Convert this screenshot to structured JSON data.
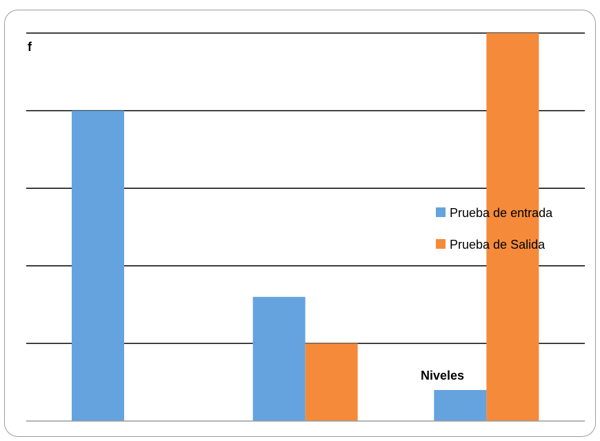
{
  "chart_data": {
    "type": "bar",
    "title": "",
    "ylabel": "f",
    "xlabel": "Niveles",
    "categories": [
      "",
      "",
      ""
    ],
    "ylim": [
      0,
      5
    ],
    "grid": true,
    "legend_position": "right",
    "series": [
      {
        "name": "Prueba de entrada",
        "color": "#65a3df",
        "values": [
          4,
          1.6,
          0.4
        ]
      },
      {
        "name": "Prueba de Salida",
        "color": "#f58b3a",
        "values": [
          0,
          1,
          5
        ]
      }
    ]
  }
}
